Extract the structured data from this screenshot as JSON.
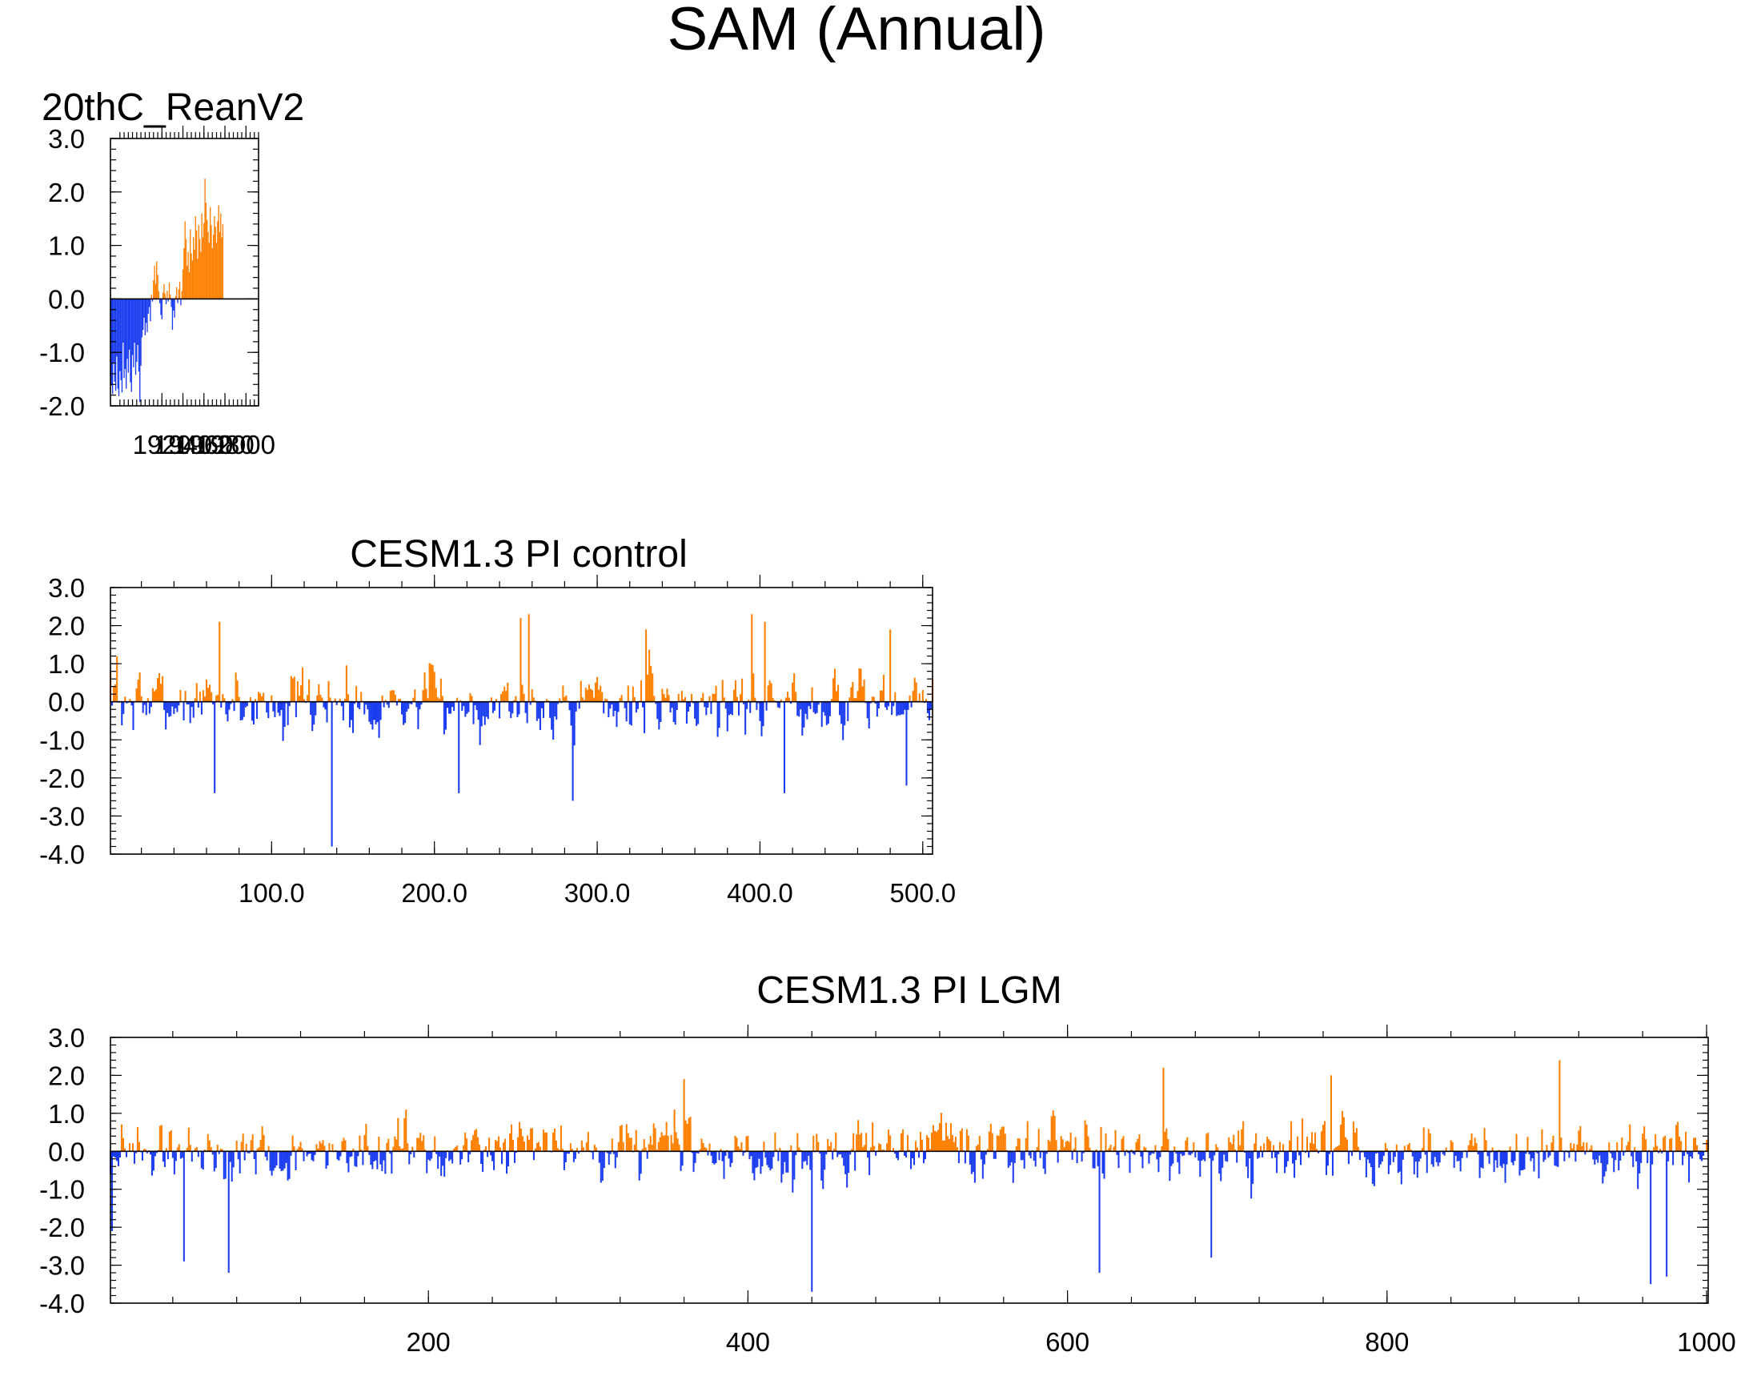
{
  "figure_title": "SAM (Annual)",
  "colors": {
    "positive": "#ff8000",
    "negative": "#1a3cf0",
    "axis": "#000000"
  },
  "chart_data": [
    {
      "type": "bar",
      "title": "20thC_ReanV2",
      "title_align": "left",
      "xlabel": "",
      "ylabel": "",
      "xlim": [
        1871,
        2012
      ],
      "ylim": [
        -2.0,
        3.0
      ],
      "yticks": [
        3.0,
        2.0,
        1.0,
        0.0,
        -1.0,
        -2.0
      ],
      "ytick_labels": [
        "3.0",
        "2.0",
        "1.0",
        "0.0",
        "-1.0",
        "-2.0"
      ],
      "xticks": [
        1920,
        1940,
        1960,
        1980,
        2000
      ],
      "xtick_labels": [
        "1920",
        "1940",
        "1960",
        "1980",
        "2000"
      ],
      "x_start": 1871,
      "values": [
        -1.45,
        -1.62,
        -1.78,
        -1.2,
        -1.55,
        -1.72,
        -1.08,
        -1.68,
        -1.82,
        -1.35,
        -1.52,
        -1.75,
        -0.82,
        -1.48,
        -1.31,
        -1.68,
        -1.12,
        -1.38,
        -0.95,
        -1.56,
        -1.74,
        -1.05,
        -1.28,
        -0.82,
        -1.42,
        -1.18,
        -0.86,
        -1.36,
        -1.93,
        -1.25,
        -0.72,
        -0.58,
        -0.35,
        -0.68,
        -0.45,
        -0.62,
        -0.28,
        -0.15,
        -0.42,
        0.08,
        -0.05,
        0.35,
        0.62,
        0.28,
        0.7,
        0.45,
        0.15,
        -0.08,
        -0.3,
        -0.38,
        0.12,
        0.28,
        0.1,
        -0.1,
        0.15,
        -0.05,
        0.3,
        0.08,
        -0.15,
        -0.58,
        -0.22,
        -0.35,
        0.05,
        0.22,
        -0.08,
        0.18,
        0.32,
        -0.12,
        0.15,
        0.55,
        0.95,
        1.45,
        1.12,
        0.62,
        0.88,
        0.5,
        1.3,
        0.85,
        0.72,
        1.15,
        0.92,
        1.55,
        1.28,
        0.75,
        1.38,
        1.12,
        0.88,
        1.6,
        1.15,
        1.42,
        2.25,
        1.8,
        1.48,
        1.25,
        1.05,
        1.72,
        1.38,
        0.95,
        1.2,
        1.55,
        1.35,
        1.05,
        1.45,
        1.75,
        1.25,
        1.6,
        1.15,
        1.4
      ]
    },
    {
      "type": "bar",
      "title": "CESM1.3 PI control",
      "xlabel": "",
      "ylabel": "",
      "xlim": [
        1,
        506
      ],
      "ylim": [
        -4.0,
        3.0
      ],
      "yticks": [
        3.0,
        2.0,
        1.0,
        0.0,
        -1.0,
        -2.0,
        -3.0,
        -4.0
      ],
      "ytick_labels": [
        "3.0",
        "2.0",
        "1.0",
        "0.0",
        "-1.0",
        "-2.0",
        "-3.0",
        "-4.0"
      ],
      "xticks": [
        100,
        200,
        300,
        400,
        500
      ],
      "xtick_labels": [
        "100.0",
        "200.0",
        "300.0",
        "400.0",
        "500.0"
      ],
      "x_start": 1,
      "n": 506,
      "generated": true,
      "seed": 7,
      "amplitude": 0.9,
      "extremes": [
        [
          137,
          -3.8
        ],
        [
          258,
          2.3
        ],
        [
          253,
          2.2
        ],
        [
          215,
          -2.4
        ],
        [
          285,
          -2.6
        ],
        [
          65,
          -2.4
        ],
        [
          68,
          2.1
        ],
        [
          330,
          1.9
        ],
        [
          395,
          2.3
        ],
        [
          403,
          2.1
        ],
        [
          415,
          -2.4
        ],
        [
          480,
          1.9
        ],
        [
          490,
          -2.2
        ],
        [
          5,
          1.2
        ]
      ]
    },
    {
      "type": "bar",
      "title": "CESM1.3 PI LGM",
      "xlabel": "",
      "ylabel": "",
      "xlim": [
        1,
        1001
      ],
      "ylim": [
        -4.0,
        3.0
      ],
      "yticks": [
        3.0,
        2.0,
        1.0,
        0.0,
        -1.0,
        -2.0,
        -3.0,
        -4.0
      ],
      "ytick_labels": [
        "3.0",
        "2.0",
        "1.0",
        "0.0",
        "-1.0",
        "-2.0",
        "-3.0",
        "-4.0"
      ],
      "xticks": [
        200,
        400,
        600,
        800,
        1000
      ],
      "xtick_labels": [
        "200",
        "400",
        "600",
        "800",
        "1000"
      ],
      "x_start": 1,
      "n": 1001,
      "generated": true,
      "seed": 19,
      "amplitude": 0.85,
      "extremes": [
        [
          440,
          -3.7
        ],
        [
          908,
          2.4
        ],
        [
          660,
          2.2
        ],
        [
          965,
          -3.5
        ],
        [
          975,
          -3.3
        ],
        [
          47,
          -2.9
        ],
        [
          75,
          -3.2
        ],
        [
          690,
          -2.8
        ],
        [
          765,
          2.0
        ],
        [
          620,
          -3.2
        ],
        [
          360,
          1.9
        ],
        [
          2,
          -2.1
        ]
      ]
    }
  ]
}
